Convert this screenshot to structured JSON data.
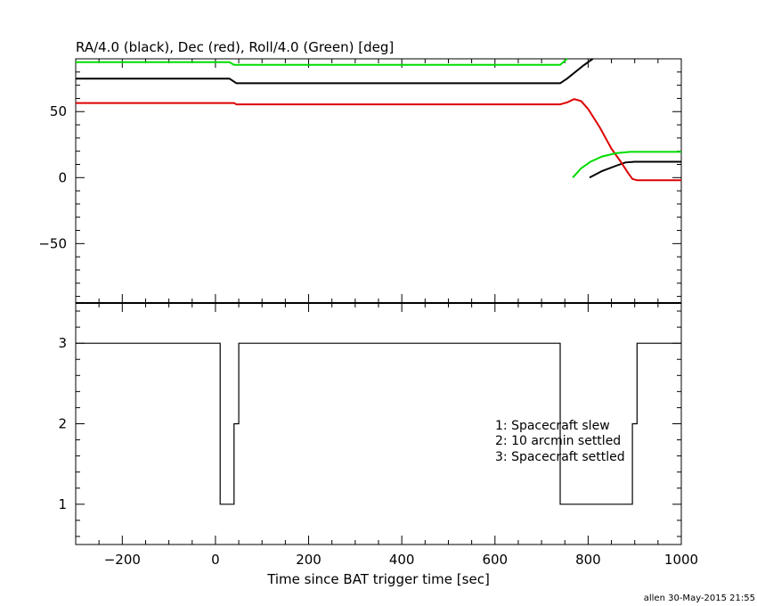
{
  "chart_data": [
    {
      "type": "line",
      "title": "RA/4.0 (black), Dec (red), Roll/4.0 (Green) [deg]",
      "ylim": [
        -95,
        90
      ],
      "yticks": [
        -50,
        0,
        50
      ],
      "xlim": [
        -300,
        1000
      ],
      "series": [
        {
          "color": "#000000",
          "segments": [
            [
              [
                -300,
                75
              ],
              [
                30,
                75
              ],
              [
                45,
                71.5
              ],
              [
                350,
                71.5
              ],
              [
                740,
                71.5
              ],
              [
                755,
                75
              ],
              [
                790,
                85
              ],
              [
                810,
                90
              ]
            ],
            [
              [
                803,
                0
              ],
              [
                830,
                5
              ],
              [
                860,
                9
              ],
              [
                880,
                11.5
              ],
              [
                900,
                12
              ],
              [
                1000,
                12
              ]
            ]
          ]
        },
        {
          "color": "#dd0000",
          "segments": [
            [
              [
                -300,
                56.5
              ],
              [
                40,
                56.5
              ],
              [
                45,
                55.5
              ],
              [
                350,
                55.5
              ],
              [
                740,
                55.5
              ],
              [
                755,
                57
              ],
              [
                770,
                59.5
              ],
              [
                785,
                58
              ],
              [
                800,
                52
              ],
              [
                825,
                38
              ],
              [
                850,
                22
              ],
              [
                870,
                12
              ],
              [
                885,
                4
              ],
              [
                895,
                -1
              ],
              [
                905,
                -2
              ],
              [
                1000,
                -2
              ]
            ]
          ]
        },
        {
          "color": "#00dd00",
          "segments": [
            [
              [
                -300,
                87.5
              ],
              [
                30,
                87.5
              ],
              [
                40,
                85.5
              ],
              [
                350,
                85.5
              ],
              [
                740,
                85.5
              ],
              [
                755,
                90
              ]
            ],
            [
              [
                767,
                0
              ],
              [
                785,
                7
              ],
              [
                805,
                12
              ],
              [
                830,
                16
              ],
              [
                860,
                18.5
              ],
              [
                890,
                19.5
              ],
              [
                1000,
                19.5
              ]
            ]
          ]
        }
      ]
    },
    {
      "type": "line",
      "ylim": [
        0.5,
        3.5
      ],
      "yticks": [
        1,
        2,
        3
      ],
      "xlim": [
        -300,
        1000
      ],
      "xticks": [
        -200,
        0,
        200,
        400,
        600,
        800,
        1000
      ],
      "xlabel": "Time since BAT trigger time [sec]",
      "series": [
        {
          "color": "#000000",
          "step_points": [
            [
              -300,
              3
            ],
            [
              10,
              3
            ],
            [
              10,
              1
            ],
            [
              40,
              1
            ],
            [
              40,
              2
            ],
            [
              50,
              2
            ],
            [
              50,
              3
            ],
            [
              740,
              3
            ],
            [
              740,
              1
            ],
            [
              895,
              1
            ],
            [
              895,
              2
            ],
            [
              905,
              2
            ],
            [
              905,
              3
            ],
            [
              1000,
              3
            ]
          ]
        }
      ],
      "legend": [
        "1: Spacecraft slew",
        "2: 10 arcmin settled",
        "3: Spacecraft settled"
      ]
    }
  ],
  "footer": "allen 30-May-2015 21:55"
}
